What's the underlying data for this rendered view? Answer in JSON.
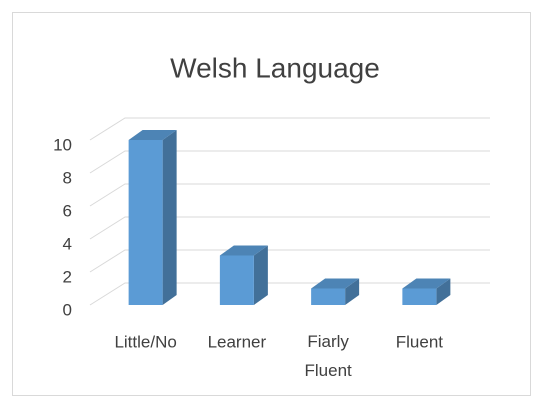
{
  "chart_data": {
    "type": "bar3d",
    "title": "Welsh Language",
    "categories": [
      "Little/No",
      "Learner",
      "Fiarly Fluent",
      "Fluent"
    ],
    "values": [
      10,
      3,
      1,
      1
    ],
    "color": "#5b9bd5",
    "ylim": [
      0,
      10
    ],
    "yticks": [
      0,
      2,
      4,
      6,
      8,
      10
    ],
    "grid": true
  }
}
